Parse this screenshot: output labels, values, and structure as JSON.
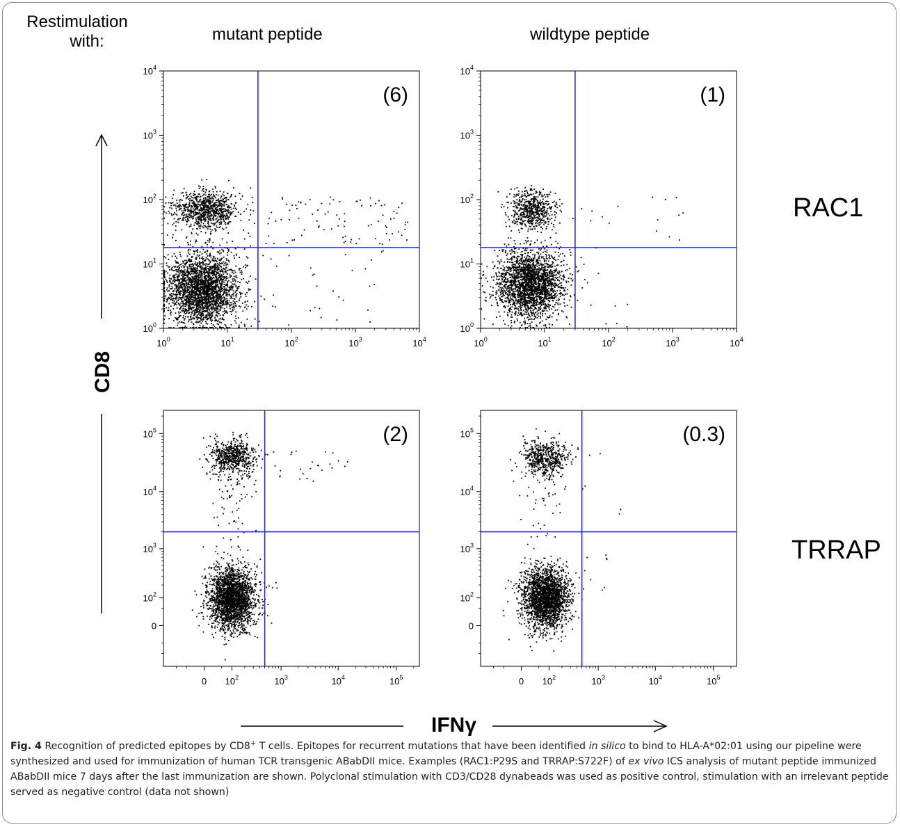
{
  "header": {
    "restim_line1": "Restimulation",
    "restim_line2": "with:",
    "col_mutant": "mutant peptide",
    "col_wildtype": "wildtype peptide"
  },
  "row_labels": {
    "top": "RAC1",
    "bottom": "TRRAP"
  },
  "axis": {
    "y_label": "CD8",
    "x_label": "IFNγ"
  },
  "chart_data": [
    {
      "type": "scatter",
      "row": "RAC1",
      "column": "mutant peptide",
      "annotation": "(6)",
      "scale": "log",
      "xlim": [
        1,
        10000
      ],
      "ylim": [
        1,
        10000
      ],
      "x_ticks": [
        "10^0",
        "10^1",
        "10^2",
        "10^3",
        "10^4"
      ],
      "y_ticks": [
        "10^0",
        "10^1",
        "10^2",
        "10^3",
        "10^4"
      ],
      "gate": {
        "x": 30,
        "y": 18
      },
      "clusters": [
        {
          "label": "CD8 low / IFNγ-",
          "x_center": 4,
          "y_center": 4,
          "spread_x_log": 0.28,
          "spread_y_log": 0.28,
          "n": 2600
        },
        {
          "label": "CD8 high / IFNγ-",
          "x_center": 4.5,
          "y_center": 70,
          "spread_x_log": 0.25,
          "spread_y_log": 0.15,
          "n": 900
        },
        {
          "label": "CD8 high / IFNγ+",
          "x_range": [
            35,
            7000
          ],
          "y_range": [
            20,
            110
          ],
          "n": 90
        },
        {
          "label": "CD8 low / IFNγ+",
          "x_range": [
            35,
            3000
          ],
          "y_range": [
            1,
            18
          ],
          "n": 30
        }
      ]
    },
    {
      "type": "scatter",
      "row": "RAC1",
      "column": "wildtype peptide",
      "annotation": "(1)",
      "scale": "log",
      "xlim": [
        1,
        10000
      ],
      "ylim": [
        1,
        10000
      ],
      "x_ticks": [
        "10^0",
        "10^1",
        "10^2",
        "10^3",
        "10^4"
      ],
      "y_ticks": [
        "10^0",
        "10^1",
        "10^2",
        "10^3",
        "10^4"
      ],
      "gate": {
        "x": 30,
        "y": 18
      },
      "clusters": [
        {
          "label": "CD8 low / IFNγ-",
          "x_center": 6,
          "y_center": 5,
          "spread_x_log": 0.26,
          "spread_y_log": 0.26,
          "n": 2400
        },
        {
          "label": "CD8 high / IFNγ-",
          "x_center": 6.5,
          "y_center": 70,
          "spread_x_log": 0.18,
          "spread_y_log": 0.15,
          "n": 600
        },
        {
          "label": "CD8 high / IFNγ+",
          "x_range": [
            32,
            1500
          ],
          "y_range": [
            20,
            110
          ],
          "n": 15
        },
        {
          "label": "CD8 low / IFNγ+",
          "x_range": [
            32,
            220
          ],
          "y_range": [
            1,
            18
          ],
          "n": 10
        }
      ]
    },
    {
      "type": "scatter",
      "row": "TRRAP",
      "column": "mutant peptide",
      "annotation": "(2)",
      "scale": "biexponential",
      "x_ticks": [
        "0",
        "10^2",
        "10^3",
        "10^4",
        "10^5"
      ],
      "y_ticks": [
        "0",
        "10^2",
        "10^3",
        "10^4",
        "10^5"
      ],
      "gate": {
        "x": 500,
        "y": 2000
      },
      "clusters": [
        {
          "label": "CD8 low / IFNγ-",
          "x_center": 100,
          "y_center": 100,
          "n": 2400
        },
        {
          "label": "CD8 high / IFNγ-",
          "x_center": 100,
          "y_center": 40000,
          "n": 700
        },
        {
          "label": "CD8 high / IFNγ+",
          "x_range": [
            550,
            20000
          ],
          "y_range": [
            15000,
            50000
          ],
          "n": 25
        },
        {
          "label": "CD8 low / IFNγ+",
          "x_range": [
            550,
            1600
          ],
          "y_range": [
            150,
            250
          ],
          "n": 2
        }
      ]
    },
    {
      "type": "scatter",
      "row": "TRRAP",
      "column": "wildtype peptide",
      "annotation": "(0.3)",
      "scale": "biexponential",
      "x_ticks": [
        "0",
        "10^2",
        "10^3",
        "10^4",
        "10^5"
      ],
      "y_ticks": [
        "0",
        "10^2",
        "10^3",
        "10^4",
        "10^5"
      ],
      "gate": {
        "x": 500,
        "y": 2000
      },
      "clusters": [
        {
          "label": "CD8 low / IFNγ-",
          "x_center": 80,
          "y_center": 100,
          "n": 2400
        },
        {
          "label": "CD8 high / IFNγ-",
          "x_center": 80,
          "y_center": 40000,
          "n": 600
        },
        {
          "label": "CD8 high / IFNγ+",
          "x_range": [
            550,
            5000
          ],
          "y_range": [
            2000,
            60000
          ],
          "n": 4
        },
        {
          "label": "CD8 low / IFNγ+",
          "x_range": [
            550,
            1800
          ],
          "y_range": [
            150,
            1000
          ],
          "n": 8
        }
      ]
    }
  ],
  "caption": {
    "fig_label": "Fig. 4",
    "part1": " Recognition of predicted epitopes by CD8",
    "sup": "+",
    "part2": " T cells. Epitopes for recurrent mutations that have been identified ",
    "italic1": "in silico",
    "part3": " to bind to HLA-A*02:01 using our pipeline were synthesized and used for immunization of human TCR transgenic ABabDII mice. Examples (RAC1:P29S and TRRAP:S722F) of ",
    "italic2": "ex vivo",
    "part4": " ICS analysis of mutant peptide immunized ABabDII mice 7 days after the last immunization are shown. Polyclonal stimulation with CD3/CD28 dynabeads was used as positive control, stimulation with an irrelevant peptide served as negative control (data not shown)"
  }
}
